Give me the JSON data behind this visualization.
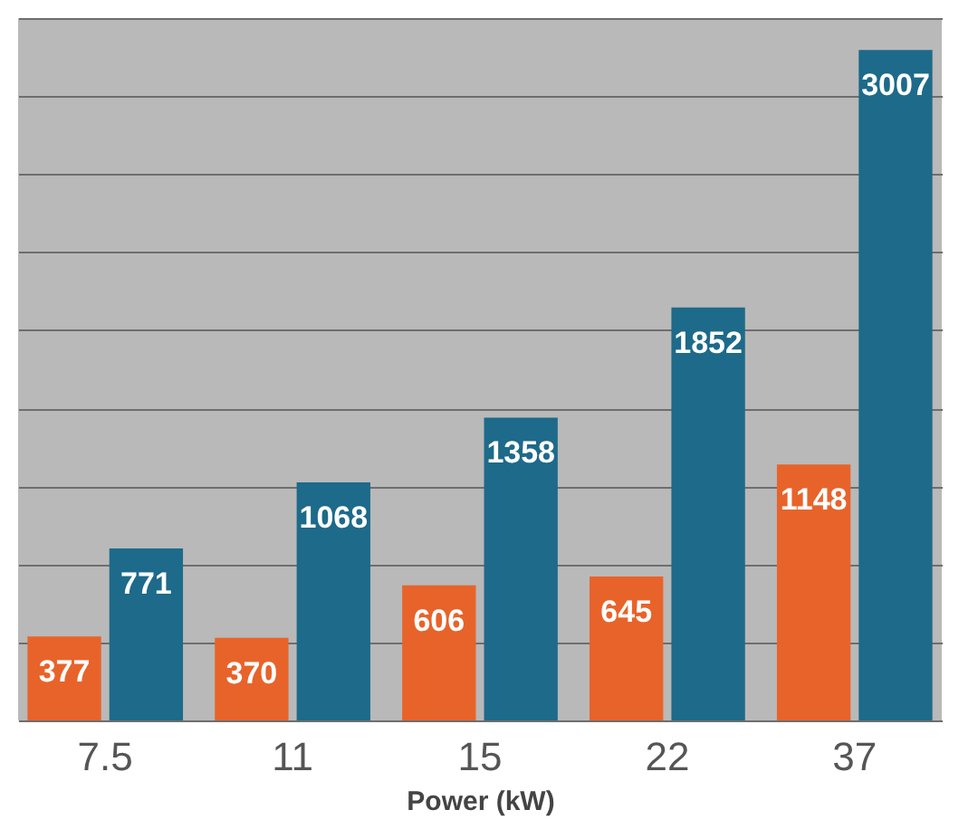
{
  "chart_data": {
    "type": "bar",
    "xlabel": "Power (kW)",
    "categories": [
      "7.5",
      "11",
      "15",
      "22",
      "37"
    ],
    "series": [
      {
        "color": "#e8632a",
        "values": [
          377,
          370,
          606,
          645,
          1148
        ]
      },
      {
        "color": "#1d6a8a",
        "values": [
          771,
          1068,
          1358,
          1852,
          3007
        ]
      }
    ],
    "ylim": [
      0,
      3150
    ],
    "yticks": [
      {
        "value": 0,
        "label": null
      },
      {
        "value": 350,
        "label": null
      },
      {
        "value": 700,
        "label": null
      },
      {
        "value": 1050,
        "label": null
      },
      {
        "value": 1400,
        "label": null
      },
      {
        "value": 1750,
        "label": null
      },
      {
        "value": 2100,
        "label": null
      },
      {
        "value": 2450,
        "label": null
      },
      {
        "value": 2800,
        "label": null
      },
      {
        "value": 3150,
        "label": null
      }
    ],
    "grid": "y",
    "tick_labels": "x",
    "data_labels": true,
    "legend": false
  }
}
